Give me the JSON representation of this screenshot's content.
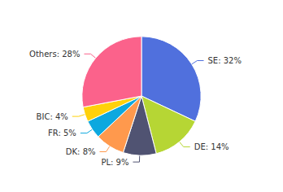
{
  "chart_data": {
    "type": "pie",
    "categories": [
      "SE",
      "DE",
      "PL",
      "DK",
      "FR",
      "BIC",
      "Others"
    ],
    "values": [
      32,
      14,
      9,
      8,
      5,
      4,
      28
    ],
    "value_labels": [
      "SE: 32%",
      "DE: 14%",
      "PL: 9%",
      "DK: 8%",
      "FR: 5%",
      "BIC: 4%",
      "Others: 28%"
    ]
  }
}
